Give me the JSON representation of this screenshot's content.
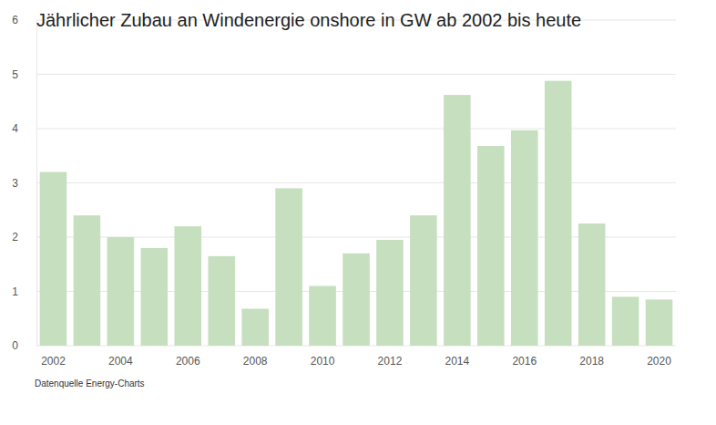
{
  "chart_data": {
    "type": "bar",
    "title": "Jährlicher Zubau an Windenergie onshore in GW ab 2002 bis heute",
    "source": "Datenquelle Energy-Charts",
    "categories": [
      "2002",
      null,
      "2004",
      null,
      "2006",
      null,
      "2008",
      null,
      "2010",
      null,
      "2012",
      null,
      "2014",
      null,
      "2016",
      null,
      "2018",
      null,
      "2020"
    ],
    "values": [
      3.2,
      2.4,
      2.0,
      1.8,
      2.2,
      1.65,
      0.68,
      2.9,
      1.1,
      1.7,
      1.95,
      2.4,
      4.62,
      3.68,
      3.97,
      4.88,
      2.25,
      0.9,
      0.85
    ],
    "color": "#c6dfbf",
    "ylim": [
      0,
      6
    ],
    "yticks": [
      0,
      1,
      2,
      3,
      4,
      5,
      6
    ],
    "grid": true
  }
}
